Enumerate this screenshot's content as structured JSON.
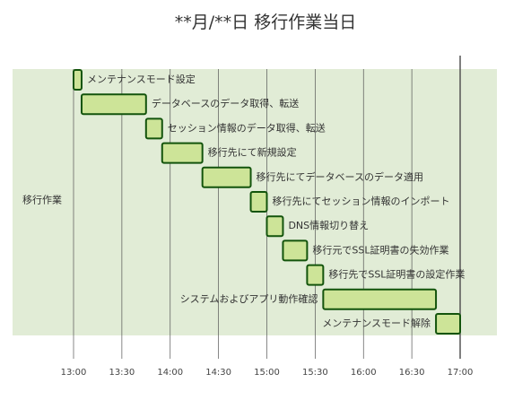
{
  "chart_data": {
    "type": "gantt",
    "title": "**月/**日 移行作業当日",
    "section": "移行作業",
    "x_ticks": [
      "13:00",
      "13:30",
      "14:00",
      "14:30",
      "15:00",
      "15:30",
      "16:00",
      "16:30",
      "17:00"
    ],
    "xlim": [
      "13:00",
      "17:00"
    ],
    "grid": true,
    "tasks": [
      {
        "name": "メンテナンスモード設定",
        "start": "13:00",
        "end": "13:05"
      },
      {
        "name": "データベースのデータ取得、転送",
        "start": "13:05",
        "end": "13:45"
      },
      {
        "name": "セッション情報のデータ取得、転送",
        "start": "13:45",
        "end": "13:55"
      },
      {
        "name": "移行先にて新規設定",
        "start": "13:55",
        "end": "14:20"
      },
      {
        "name": "移行先にてデータベースのデータ適用",
        "start": "14:20",
        "end": "14:50"
      },
      {
        "name": "移行先にてセッション情報のインポート",
        "start": "14:50",
        "end": "15:00"
      },
      {
        "name": "DNS情報切り替え",
        "start": "15:00",
        "end": "15:10"
      },
      {
        "name": "移行元でSSL証明書の失効作業",
        "start": "15:10",
        "end": "15:25"
      },
      {
        "name": "移行先でSSL証明書の設定作業",
        "start": "15:25",
        "end": "15:35"
      },
      {
        "name": "システムおよびアプリ動作確認",
        "start": "15:35",
        "end": "16:45"
      },
      {
        "name": "メンテナンスモード解除",
        "start": "16:45",
        "end": "17:00"
      }
    ],
    "colors": {
      "bar_fill": "#cde498",
      "bar_stroke": "#13540c",
      "section_bg": "#e1ecd6",
      "grid": "#555555"
    }
  }
}
